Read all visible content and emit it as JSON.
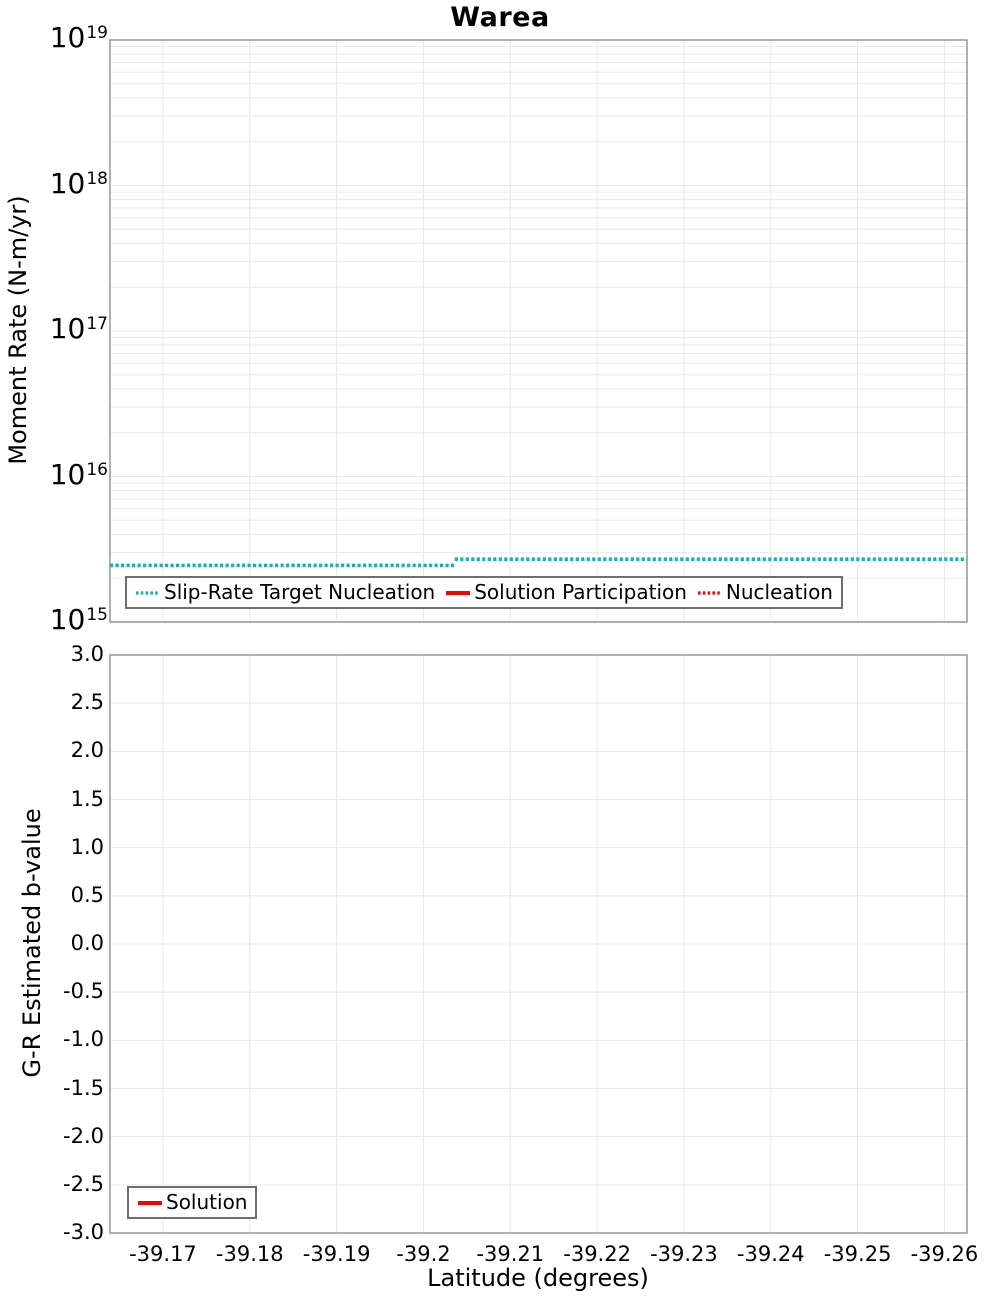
{
  "title": "Warea",
  "colors": {
    "teal": "#14b4b4",
    "red": "#ff0000",
    "grid": "#e8e8e8",
    "plot_border": "#969696",
    "legend_border": "#6e6e6e",
    "text": "#000000",
    "background": "#ffffff"
  },
  "chart_data": [
    {
      "id": "moment-rate",
      "type": "line",
      "title": "Warea",
      "ylabel": "Moment Rate (N-m/yr)",
      "yscale": "log",
      "ylim": [
        1000000000000000.0,
        1e+19
      ],
      "y_tick_exponents": [
        19,
        18,
        17,
        16,
        15
      ],
      "xlim": [
        -39.1639,
        -39.2626
      ],
      "x_ticks": [
        -39.17,
        -39.18,
        -39.19,
        -39.2,
        -39.21,
        -39.22,
        -39.23,
        -39.24,
        -39.25,
        -39.26
      ],
      "show_x_tick_labels": false,
      "grid": true,
      "legend_position": "bottom-left-inside",
      "series": [
        {
          "name": "Slip-Rate Target Nucleation",
          "color": "#14b4b4",
          "line_style": "dotted",
          "line_width": 3.6,
          "points": [
            [
              -39.1639,
              2450000000000000.0
            ],
            [
              -39.2036,
              2450000000000000.0
            ],
            null,
            [
              -39.2036,
              2700000000000000.0
            ],
            [
              -39.2626,
              2700000000000000.0
            ]
          ]
        },
        {
          "name": "Solution Participation",
          "color": "#ff0000",
          "line_style": "solid",
          "line_width": 3.6,
          "points": []
        },
        {
          "name": "Nucleation",
          "color": "#ff0000",
          "line_style": "dotted",
          "line_width": 3,
          "points": []
        }
      ]
    },
    {
      "id": "b-value",
      "type": "line",
      "ylabel": "G-R Estimated b-value",
      "xlabel": "Latitude (degrees)",
      "yscale": "linear",
      "ylim": [
        -3.0,
        3.0
      ],
      "y_ticks": [
        3.0,
        2.5,
        2.0,
        1.5,
        1.0,
        0.5,
        0.0,
        -0.5,
        -1.0,
        -1.5,
        -2.0,
        -2.5,
        -3.0
      ],
      "y_tick_labels": [
        "3.0",
        "2.5",
        "2.0",
        "1.5",
        "1.0",
        "0.5",
        "0.0",
        "-0.5",
        "-1.0",
        "-1.5",
        "-2.0",
        "-2.5",
        "-3.0"
      ],
      "xlim": [
        -39.1639,
        -39.2626
      ],
      "x_ticks": [
        -39.17,
        -39.18,
        -39.19,
        -39.2,
        -39.21,
        -39.22,
        -39.23,
        -39.24,
        -39.25,
        -39.26
      ],
      "x_tick_labels": [
        "-39.17",
        "-39.18",
        "-39.19",
        "-39.2",
        "-39.21",
        "-39.22",
        "-39.23",
        "-39.24",
        "-39.25",
        "-39.26"
      ],
      "show_x_tick_labels": true,
      "grid": true,
      "legend_position": "bottom-left-inside",
      "series": [
        {
          "name": "Solution",
          "color": "#ff0000",
          "line_style": "solid",
          "line_width": 3.6,
          "points": []
        }
      ]
    }
  ]
}
